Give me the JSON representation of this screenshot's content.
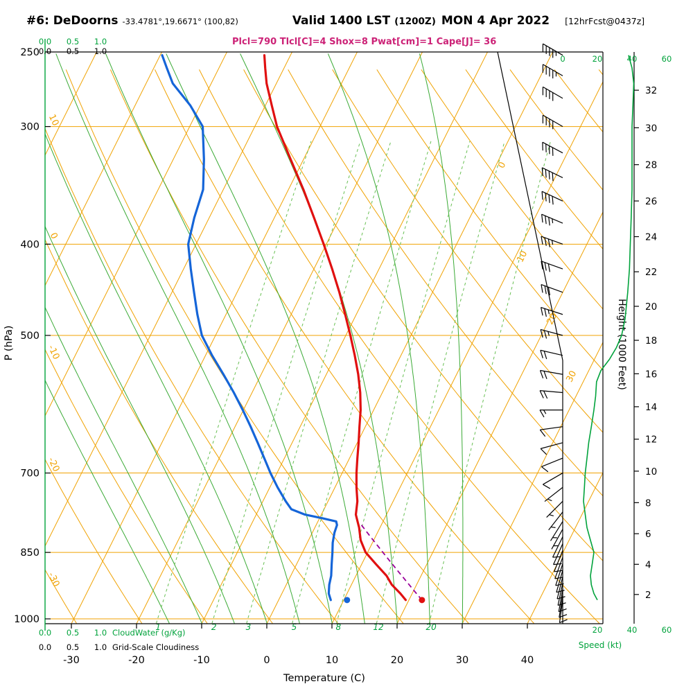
{
  "header": {
    "station": "#6: DeDoorns",
    "coords": "-33.4781°,19.6671° (100,82)",
    "valid": "Valid 1400 LST",
    "valid_z": "(1200Z)",
    "valid_date": "MON 4 Apr 2022",
    "fcst": "[12hrFcst@0437z]",
    "params": "Plcl=790 Tlcl[C]=4 Shox=8 Pwat[cm]=1 Cape[J]= 36"
  },
  "axes": {
    "pressure_label": "P (hPa)",
    "pressure_ticks": [
      250,
      300,
      400,
      500,
      700,
      850,
      1000
    ],
    "temp_label": "Temperature (C)",
    "temp_ticks": [
      -30,
      -20,
      -10,
      0,
      10,
      20,
      30,
      40
    ],
    "height_label": "Height (1000 Feet)",
    "height_ticks": [
      2,
      4,
      6,
      8,
      10,
      12,
      14,
      16,
      18,
      20,
      22,
      24,
      26,
      28,
      30,
      32
    ],
    "speed_label": "Speed (kt)",
    "speed_ticks_top": [
      0,
      20,
      40,
      60
    ],
    "speed_ticks_bottom": [
      20,
      40,
      60
    ],
    "cloud_scale": [
      "0.0",
      "0.5",
      "1.0"
    ],
    "cloudwater_label": "CloudWater (g/Kg)",
    "gridscale_label": "Grid-Scale Cloudiness",
    "mixing_ratios": [
      1,
      2,
      3,
      5,
      8,
      12,
      20
    ],
    "dry_adiabat_labels": [
      [
        10,
        175
      ],
      [
        0,
        342
      ],
      [
        -10,
        510
      ],
      [
        -20,
        672
      ],
      [
        -30,
        838
      ]
    ],
    "isotherm_labels": [
      [
        0,
        728,
        240
      ],
      [
        10,
        757,
        372
      ],
      [
        20,
        800,
        462
      ],
      [
        30,
        828,
        545
      ]
    ]
  },
  "chart_data": {
    "type": "skewt-logp-sounding",
    "pressure_hpa_range": [
      250,
      1011
    ],
    "temperature_c": [
      [
        955,
        19.5
      ],
      [
        940,
        18.2
      ],
      [
        920,
        16.2
      ],
      [
        900,
        14.7
      ],
      [
        875,
        12.2
      ],
      [
        850,
        9.7
      ],
      [
        825,
        8.0
      ],
      [
        800,
        6.8
      ],
      [
        790,
        6.2
      ],
      [
        775,
        5.3
      ],
      [
        750,
        4.5
      ],
      [
        725,
        3.3
      ],
      [
        700,
        2.2
      ],
      [
        675,
        1.2
      ],
      [
        650,
        0.2
      ],
      [
        625,
        -0.9
      ],
      [
        600,
        -2.0
      ],
      [
        575,
        -3.4
      ],
      [
        550,
        -5.1
      ],
      [
        525,
        -7.1
      ],
      [
        500,
        -9.3
      ],
      [
        475,
        -11.7
      ],
      [
        450,
        -14.3
      ],
      [
        425,
        -17.2
      ],
      [
        400,
        -20.4
      ],
      [
        375,
        -23.9
      ],
      [
        350,
        -27.7
      ],
      [
        325,
        -32.0
      ],
      [
        300,
        -36.6
      ],
      [
        285,
        -39.0
      ],
      [
        270,
        -41.5
      ],
      [
        260,
        -42.9
      ],
      [
        252,
        -44.0
      ]
    ],
    "dewpoint_c": [
      [
        955,
        8.0
      ],
      [
        940,
        7.2
      ],
      [
        920,
        6.6
      ],
      [
        900,
        6.2
      ],
      [
        875,
        5.4
      ],
      [
        850,
        4.6
      ],
      [
        830,
        3.9
      ],
      [
        810,
        3.4
      ],
      [
        795,
        3.2
      ],
      [
        788,
        2.8
      ],
      [
        782,
        0.5
      ],
      [
        775,
        -2.5
      ],
      [
        765,
        -5.0
      ],
      [
        750,
        -6.5
      ],
      [
        725,
        -8.8
      ],
      [
        700,
        -11.0
      ],
      [
        675,
        -13.1
      ],
      [
        650,
        -15.3
      ],
      [
        625,
        -17.6
      ],
      [
        600,
        -20.1
      ],
      [
        575,
        -22.8
      ],
      [
        550,
        -25.8
      ],
      [
        525,
        -29.0
      ],
      [
        500,
        -32.1
      ],
      [
        475,
        -34.4
      ],
      [
        450,
        -36.6
      ],
      [
        425,
        -38.9
      ],
      [
        400,
        -41.2
      ],
      [
        375,
        -42.3
      ],
      [
        350,
        -43.1
      ],
      [
        325,
        -45.3
      ],
      [
        300,
        -48.0
      ],
      [
        285,
        -51.5
      ],
      [
        270,
        -55.9
      ],
      [
        260,
        -58.0
      ],
      [
        252,
        -59.7
      ]
    ],
    "parcel": {
      "p_surface": 955,
      "t_surface_c": 22,
      "p_lcl": 790
    },
    "surface_temp_marker": {
      "p": 955,
      "t_c": 22
    },
    "surface_dewpoint_marker": {
      "p": 955,
      "t_c": 10.5
    },
    "winds_kt": [
      [
        252,
        300,
        45
      ],
      [
        265,
        300,
        43
      ],
      [
        280,
        300,
        42
      ],
      [
        300,
        300,
        40
      ],
      [
        320,
        298,
        40
      ],
      [
        340,
        296,
        39
      ],
      [
        360,
        295,
        38
      ],
      [
        380,
        293,
        36
      ],
      [
        400,
        290,
        35
      ],
      [
        425,
        290,
        32
      ],
      [
        450,
        290,
        30
      ],
      [
        475,
        288,
        27
      ],
      [
        500,
        285,
        25
      ],
      [
        525,
        283,
        22
      ],
      [
        550,
        280,
        20
      ],
      [
        575,
        275,
        18
      ],
      [
        600,
        270,
        15
      ],
      [
        625,
        262,
        12
      ],
      [
        650,
        255,
        10
      ],
      [
        675,
        248,
        9
      ],
      [
        700,
        240,
        8
      ],
      [
        725,
        232,
        7
      ],
      [
        750,
        225,
        6
      ],
      [
        770,
        218,
        6
      ],
      [
        788,
        212,
        7
      ],
      [
        803,
        209,
        7
      ],
      [
        818,
        206,
        8
      ],
      [
        832,
        204,
        8
      ],
      [
        846,
        202,
        9
      ],
      [
        860,
        200,
        9
      ],
      [
        874,
        198,
        10
      ],
      [
        888,
        196,
        10
      ],
      [
        902,
        194,
        10
      ],
      [
        916,
        192,
        11
      ],
      [
        930,
        190,
        11
      ],
      [
        943,
        189,
        12
      ],
      [
        955,
        188,
        12
      ]
    ],
    "wind_speed_profile_kt": [
      [
        955,
        20
      ],
      [
        940,
        18
      ],
      [
        920,
        16.5
      ],
      [
        900,
        16
      ],
      [
        875,
        17
      ],
      [
        850,
        18
      ],
      [
        825,
        16
      ],
      [
        800,
        14
      ],
      [
        775,
        13
      ],
      [
        750,
        12
      ],
      [
        725,
        12.5
      ],
      [
        700,
        13
      ],
      [
        675,
        14
      ],
      [
        650,
        15
      ],
      [
        625,
        16.5
      ],
      [
        600,
        18
      ],
      [
        580,
        19
      ],
      [
        560,
        19.5
      ],
      [
        545,
        22
      ],
      [
        530,
        27
      ],
      [
        515,
        31
      ],
      [
        500,
        34
      ],
      [
        480,
        36
      ],
      [
        450,
        37.5
      ],
      [
        425,
        38.5
      ],
      [
        400,
        39
      ],
      [
        375,
        39.5
      ],
      [
        350,
        40
      ],
      [
        325,
        40
      ],
      [
        300,
        40
      ],
      [
        285,
        40.5
      ],
      [
        270,
        41
      ],
      [
        260,
        40
      ],
      [
        252,
        38
      ]
    ],
    "moist_adiabats_c": [
      -15,
      -10,
      -5,
      0,
      5,
      10,
      15,
      20,
      25,
      30
    ],
    "dry_adiabats_c": {
      "min": -40,
      "max": 150,
      "step": 10
    },
    "isotherms_c": {
      "min": -90,
      "max": 40,
      "step": 10
    },
    "indices": {
      "plcl_hpa": 790,
      "tlcl_c": 4,
      "showalter": 8,
      "pwat_cm": 1,
      "cape_j": 36
    }
  },
  "colors": {
    "grid_orange": "#f0a202",
    "moist_green": "#3aaa35",
    "mix_green": "#67bf52",
    "text_green": "#00a23b",
    "temp_red": "#e01010",
    "dewpoint_blue": "#1565d8",
    "parcel_magenta": "#990099",
    "subtitle": "#cc2277",
    "black": "#000000"
  }
}
